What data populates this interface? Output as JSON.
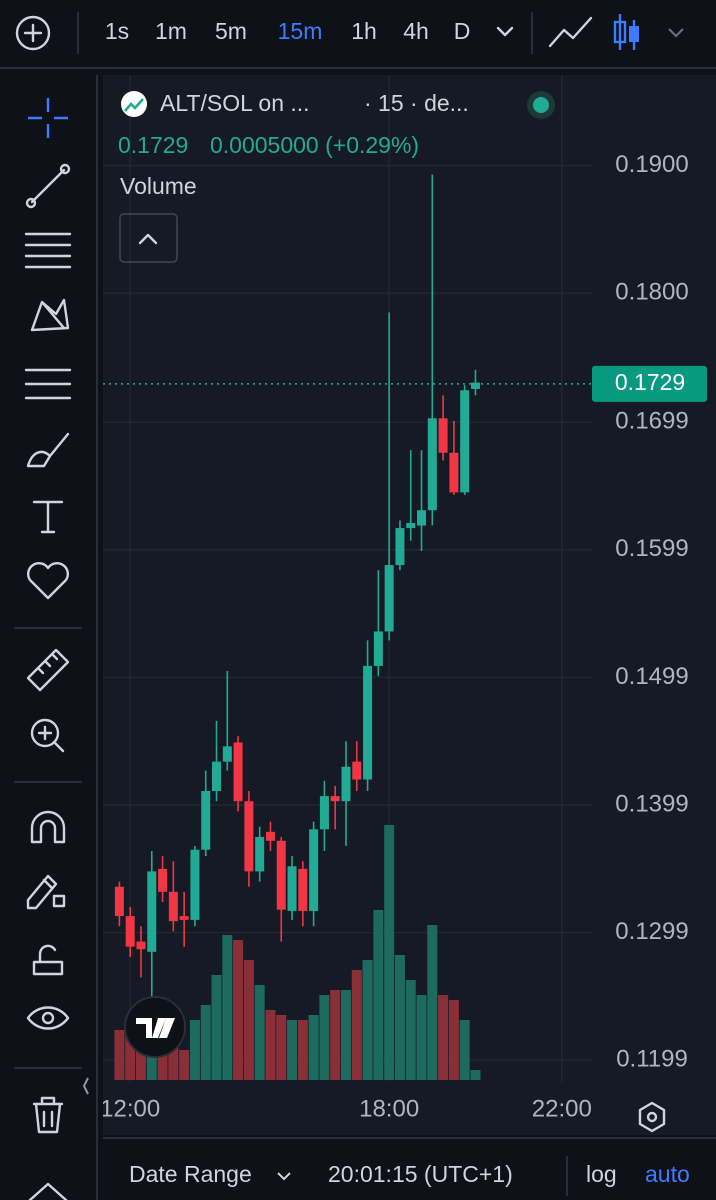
{
  "toolbar": {
    "intervals": [
      "1s",
      "1m",
      "5m",
      "15m",
      "1h",
      "4h",
      "D"
    ]
  },
  "legend": {
    "symbol": "ALT/SOL on ...",
    "interval": "· 15 · de...",
    "price": "0.1729",
    "change": "0.0005000 (+0.29%)",
    "study": "Volume"
  },
  "bottom_bar": {
    "range": "Date Range",
    "time": "20:01:15 (UTC+1)",
    "log": "log",
    "auto": "auto"
  },
  "chart_data": {
    "type": "candlestick",
    "up_color": "#22ab94",
    "down_color": "#f23645",
    "volume_up_color": "#1d6b5f",
    "volume_down_color": "#8a2f38",
    "grid": true,
    "x": [
      11.75,
      12,
      12.25,
      12.5,
      12.75,
      13,
      13.25,
      13.5,
      13.75,
      14,
      14.25,
      14.5,
      14.75,
      15,
      15.25,
      15.5,
      15.75,
      16,
      16.25,
      16.5,
      16.75,
      17,
      17.25,
      17.5,
      17.75,
      18,
      18.25,
      18.5,
      18.75,
      19,
      19.25,
      19.5,
      19.75,
      20
    ],
    "open": [
      0.1335,
      0.1312,
      0.1292,
      0.1284,
      0.1349,
      0.1331,
      0.1312,
      0.1309,
      0.1364,
      0.141,
      0.1433,
      0.1448,
      0.1402,
      0.1347,
      0.1378,
      0.1371,
      0.1316,
      0.1349,
      0.1316,
      0.138,
      0.1406,
      0.1402,
      0.1433,
      0.1419,
      0.1508,
      0.1535,
      0.1587,
      0.1616,
      0.1618,
      0.163,
      0.1702,
      0.1675,
      0.1644,
      0.1725
    ],
    "high": [
      0.1339,
      0.1319,
      0.1304,
      0.1363,
      0.1359,
      0.1355,
      0.1331,
      0.1367,
      0.1426,
      0.1465,
      0.1504,
      0.1453,
      0.141,
      0.1382,
      0.1386,
      0.1374,
      0.1359,
      0.1355,
      0.1386,
      0.1418,
      0.1414,
      0.1449,
      0.1449,
      0.1528,
      0.1583,
      0.1785,
      0.1622,
      0.1677,
      0.1677,
      0.1893,
      0.172,
      0.17,
      0.1728,
      0.174
    ],
    "low": [
      0.1304,
      0.128,
      0.1264,
      0.1245,
      0.1323,
      0.13,
      0.1288,
      0.1304,
      0.1359,
      0.1402,
      0.1426,
      0.1394,
      0.1335,
      0.1339,
      0.1363,
      0.1292,
      0.1309,
      0.1304,
      0.1304,
      0.1363,
      0.138,
      0.1367,
      0.141,
      0.141,
      0.15,
      0.1528,
      0.1583,
      0.1606,
      0.1598,
      0.1618,
      0.1669,
      0.1642,
      0.1642,
      0.172
    ],
    "close": [
      0.1312,
      0.1288,
      0.1286,
      0.1347,
      0.1331,
      0.1308,
      0.1309,
      0.1364,
      0.141,
      0.1433,
      0.1445,
      0.1402,
      0.1347,
      0.1374,
      0.1371,
      0.1317,
      0.1351,
      0.1316,
      0.138,
      0.1406,
      0.1402,
      0.1429,
      0.1419,
      0.1508,
      0.1535,
      0.1587,
      0.1616,
      0.162,
      0.163,
      0.1702,
      0.1675,
      0.1644,
      0.1724,
      0.173
    ],
    "volume": [
      50,
      55,
      40,
      80,
      60,
      40,
      30,
      60,
      75,
      105,
      145,
      140,
      120,
      95,
      70,
      65,
      60,
      60,
      65,
      85,
      90,
      90,
      110,
      120,
      170,
      255,
      125,
      100,
      85,
      155,
      85,
      80,
      60,
      10
    ],
    "last_price": {
      "value": 0.1729,
      "label": "0.1729"
    },
    "xlim": [
      11.37,
      22.7
    ],
    "xticks": [
      {
        "value": 12,
        "label": "12:00"
      },
      {
        "value": 18,
        "label": "18:00"
      },
      {
        "value": 22,
        "label": "22:00"
      }
    ],
    "ylim": [
      0.1182,
      0.1971
    ],
    "yticks": [
      {
        "value": 0.19,
        "label": "0.1900"
      },
      {
        "value": 0.18,
        "label": "0.1800"
      },
      {
        "value": 0.1699,
        "label": "0.1699"
      },
      {
        "value": 0.1599,
        "label": "0.1599"
      },
      {
        "value": 0.1499,
        "label": "0.1499"
      },
      {
        "value": 0.1399,
        "label": "0.1399"
      },
      {
        "value": 0.1299,
        "label": "0.1299"
      },
      {
        "value": 0.1199,
        "label": "0.1199"
      }
    ]
  }
}
